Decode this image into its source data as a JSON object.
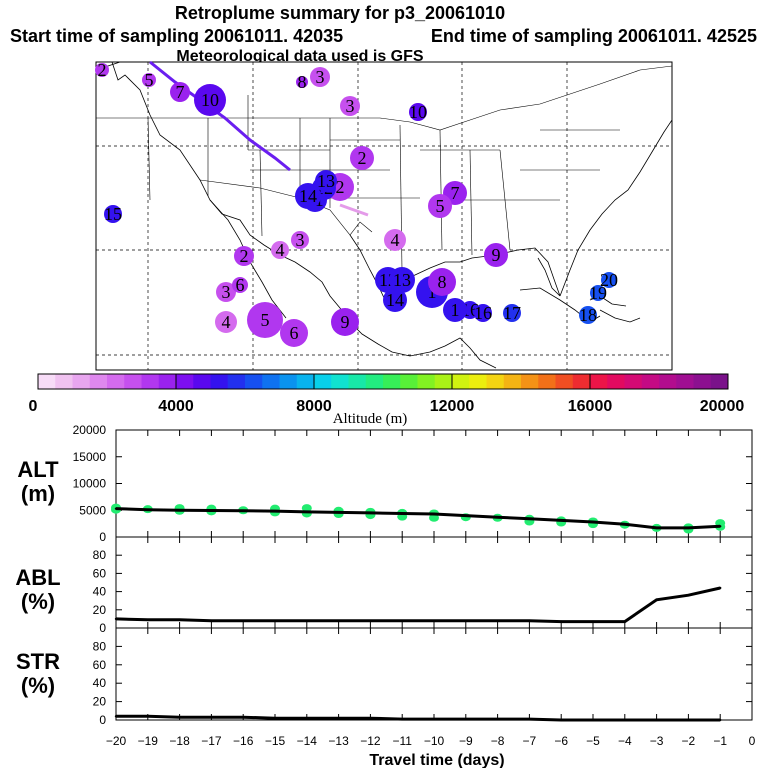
{
  "header": {
    "title": "Retroplume summary for p3_20061010",
    "start": "Start time of sampling 20061011. 42035",
    "end": "End time of sampling 20061011. 42525",
    "met": "Meteorological data used is GFS"
  },
  "colorbar": {
    "label": "Altitude (m)",
    "ticks": [
      "0",
      "4000",
      "8000",
      "12000",
      "16000",
      "20000"
    ],
    "range": [
      0,
      20000
    ],
    "colors": [
      "#f7dcf7",
      "#f0c2f0",
      "#e8a6ef",
      "#df88ee",
      "#d46bee",
      "#c650ee",
      "#b137ef",
      "#9a22ee",
      "#7d0ff0",
      "#5a08ef",
      "#3412ef",
      "#2230ef",
      "#1650f0",
      "#0f72f0",
      "#0a93ef",
      "#08b3ee",
      "#08d0ea",
      "#10e2d0",
      "#18e8a8",
      "#22ec80",
      "#36ee58",
      "#58f038",
      "#82f222",
      "#aaf216",
      "#d0f210",
      "#ecee0e",
      "#f4d412",
      "#f4b414",
      "#f49216",
      "#f27018",
      "#f04e22",
      "#ee2c30",
      "#ec1448",
      "#e20a60",
      "#d40a74",
      "#c40a84",
      "#b20c8e",
      "#a00e92",
      "#8c1090",
      "#7a128a"
    ]
  },
  "plumes": [
    {
      "label": "1",
      "alt": 5200
    },
    {
      "label": "2",
      "alt": 3000
    },
    {
      "label": "3",
      "alt": 2600
    },
    {
      "label": "4",
      "alt": 2000
    },
    {
      "label": "5",
      "alt": 3200
    },
    {
      "label": "6",
      "alt": 3300
    },
    {
      "label": "7",
      "alt": 3500
    },
    {
      "label": "8",
      "alt": 3500
    },
    {
      "label": "9",
      "alt": 3600
    },
    {
      "label": "10",
      "alt": 4800
    },
    {
      "label": "11",
      "alt": 5000
    },
    {
      "label": "12",
      "alt": 5000
    },
    {
      "label": "13",
      "alt": 5000
    },
    {
      "label": "14",
      "alt": 5000
    },
    {
      "label": "15",
      "alt": 5200
    },
    {
      "label": "16",
      "alt": 5400
    },
    {
      "label": "17",
      "alt": 5600
    },
    {
      "label": "18",
      "alt": 6000
    },
    {
      "label": "19",
      "alt": 6200
    },
    {
      "label": "20",
      "alt": 6400
    }
  ],
  "chart_data": [
    {
      "type": "line",
      "panel": "ALT",
      "title": "ALT (m)",
      "label_line1": "ALT",
      "label_line2": "(m)",
      "x": [
        -20,
        -19,
        -18,
        -17,
        -16,
        -15,
        -14,
        -13,
        -12,
        -11,
        -10,
        -9,
        -8,
        -7,
        -6,
        -5,
        -4,
        -3,
        -2,
        -1
      ],
      "values": [
        5300,
        5100,
        5000,
        4950,
        4900,
        4850,
        4700,
        4600,
        4500,
        4400,
        4300,
        4000,
        3700,
        3400,
        3100,
        2800,
        2400,
        1700,
        1700,
        2000
      ],
      "scatter_points": [
        [
          -20,
          5500
        ],
        [
          -20,
          5100
        ],
        [
          -19,
          5200
        ],
        [
          -18,
          5400
        ],
        [
          -18,
          4900
        ],
        [
          -17,
          5300
        ],
        [
          -17,
          4800
        ],
        [
          -16,
          5000
        ],
        [
          -15,
          5300
        ],
        [
          -15,
          4600
        ],
        [
          -14,
          5400
        ],
        [
          -14,
          4400
        ],
        [
          -13,
          4900
        ],
        [
          -13,
          4300
        ],
        [
          -12,
          4700
        ],
        [
          -12,
          4100
        ],
        [
          -11,
          4500
        ],
        [
          -11,
          3800
        ],
        [
          -10,
          4400
        ],
        [
          -10,
          3600
        ],
        [
          -9,
          3700
        ],
        [
          -8,
          3600
        ],
        [
          -7,
          3400
        ],
        [
          -7,
          2900
        ],
        [
          -6,
          3100
        ],
        [
          -6,
          2700
        ],
        [
          -5,
          2900
        ],
        [
          -5,
          2400
        ],
        [
          -4,
          2300
        ],
        [
          -3,
          1700
        ],
        [
          -2,
          1800
        ],
        [
          -2,
          1400
        ],
        [
          -1,
          2600
        ],
        [
          -1,
          1900
        ]
      ],
      "xlim": [
        -20,
        0
      ],
      "ylim": [
        0,
        20000
      ],
      "yticks": [
        "0",
        "5000",
        "10000",
        "15000",
        "20000"
      ]
    },
    {
      "type": "line",
      "panel": "ABL",
      "title": "ABL (%)",
      "label_line1": "ABL",
      "label_line2": "(%)",
      "x": [
        -20,
        -19,
        -18,
        -17,
        -16,
        -15,
        -14,
        -13,
        -12,
        -11,
        -10,
        -9,
        -8,
        -7,
        -6,
        -5,
        -4,
        -3,
        -2,
        -1
      ],
      "values": [
        10,
        9,
        9,
        8,
        8,
        8,
        8,
        8,
        8,
        8,
        8,
        8,
        8,
        8,
        7,
        7,
        7,
        31,
        36,
        44
      ],
      "xlim": [
        -20,
        0
      ],
      "ylim": [
        0,
        100
      ],
      "yticks": [
        "0",
        "20",
        "40",
        "60",
        "80"
      ]
    },
    {
      "type": "line",
      "panel": "STR",
      "title": "STR (%)",
      "label_line1": "STR",
      "label_line2": "(%)",
      "x": [
        -20,
        -19,
        -18,
        -17,
        -16,
        -15,
        -14,
        -13,
        -12,
        -11,
        -10,
        -9,
        -8,
        -7,
        -6,
        -5,
        -4,
        -3,
        -2,
        -1
      ],
      "values": [
        4,
        4,
        3,
        3,
        3,
        2,
        2,
        2,
        2,
        1,
        1,
        1,
        1,
        1,
        0,
        0,
        0,
        0,
        0,
        0
      ],
      "xlim": [
        -20,
        0
      ],
      "ylim": [
        0,
        100
      ],
      "yticks": [
        "0",
        "20",
        "40",
        "60",
        "80"
      ],
      "xlabel": "Travel time (days)",
      "xticks": [
        "−20",
        "−19",
        "−18",
        "−17",
        "−16",
        "−15",
        "−14",
        "−13",
        "−12",
        "−11",
        "−10",
        "−9",
        "−8",
        "−7",
        "−6",
        "−5",
        "−4",
        "−3",
        "−2",
        "−1",
        "0"
      ]
    }
  ]
}
